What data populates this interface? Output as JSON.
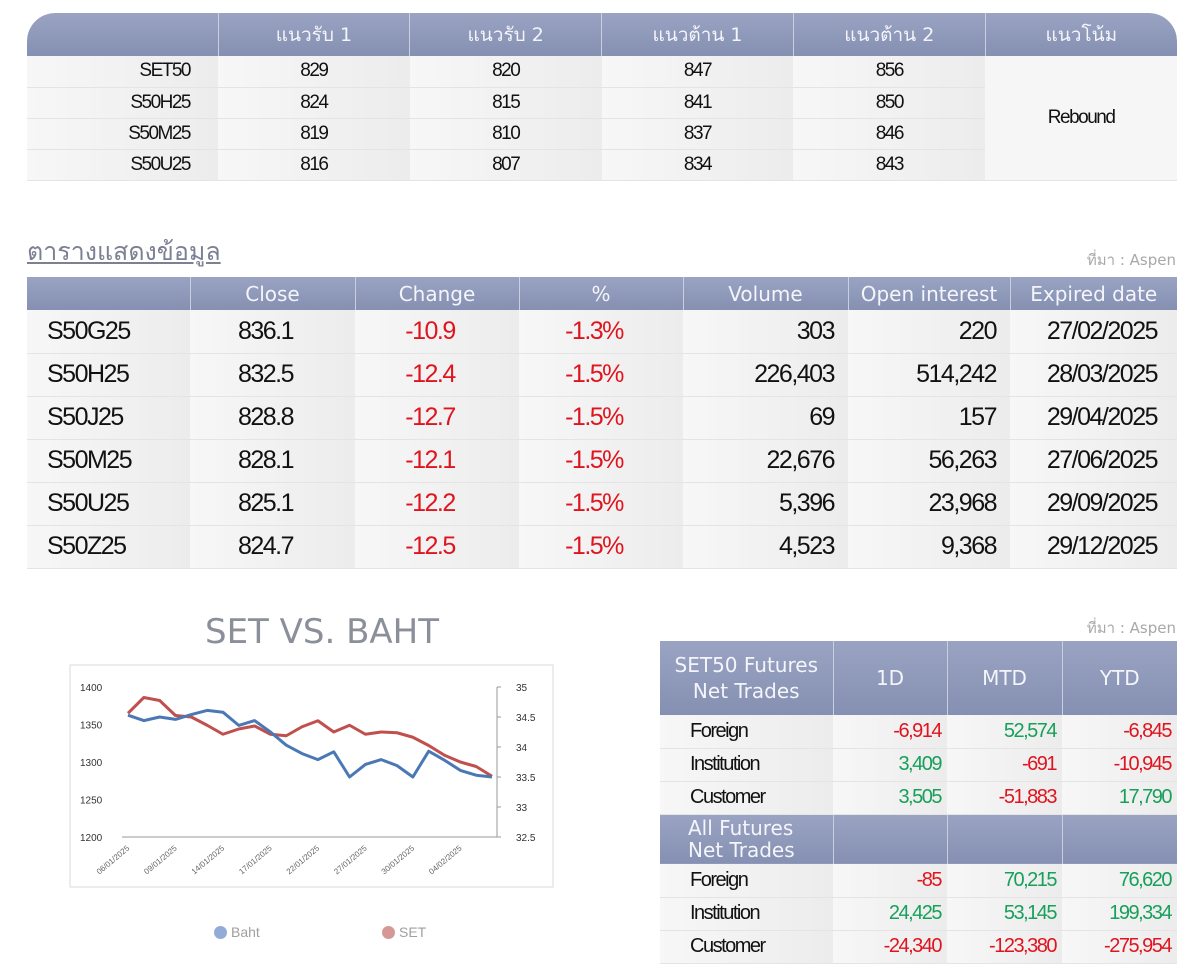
{
  "levels": {
    "headers": [
      "",
      "แนวรับ 1",
      "แนวรับ 2",
      "แนวต้าน 1",
      "แนวต้าน 2",
      "แนวโน้ม"
    ],
    "rows": [
      {
        "symbol": "SET50",
        "s1": "829",
        "s2": "820",
        "r1": "847",
        "r2": "856"
      },
      {
        "symbol": "S50H25",
        "s1": "824",
        "s2": "815",
        "r1": "841",
        "r2": "850"
      },
      {
        "symbol": "S50M25",
        "s1": "819",
        "s2": "810",
        "r1": "837",
        "r2": "846"
      },
      {
        "symbol": "S50U25",
        "s1": "816",
        "s2": "807",
        "r1": "834",
        "r2": "843"
      }
    ],
    "trend": "Rebound"
  },
  "section_title": "ตารางแสดงข้อมูล",
  "source_label": "ที่มา : Aspen",
  "futures": {
    "headers": [
      "",
      "Close",
      "Change",
      "%",
      "Volume",
      "Open interest",
      "Expired date"
    ],
    "rows": [
      {
        "symbol": "S50G25",
        "close": "836.1",
        "change": "-10.9",
        "pct": "-1.3%",
        "volume": "303",
        "oi": "220",
        "expiry": "27/02/2025"
      },
      {
        "symbol": "S50H25",
        "close": "832.5",
        "change": "-12.4",
        "pct": "-1.5%",
        "volume": "226,403",
        "oi": "514,242",
        "expiry": "28/03/2025"
      },
      {
        "symbol": "S50J25",
        "close": "828.8",
        "change": "-12.7",
        "pct": "-1.5%",
        "volume": "69",
        "oi": "157",
        "expiry": "29/04/2025"
      },
      {
        "symbol": "S50M25",
        "close": "828.1",
        "change": "-12.1",
        "pct": "-1.5%",
        "volume": "22,676",
        "oi": "56,263",
        "expiry": "27/06/2025"
      },
      {
        "symbol": "S50U25",
        "close": "825.1",
        "change": "-12.2",
        "pct": "-1.5%",
        "volume": "5,396",
        "oi": "23,968",
        "expiry": "29/09/2025"
      },
      {
        "symbol": "S50Z25",
        "close": "824.7",
        "change": "-12.5",
        "pct": "-1.5%",
        "volume": "4,523",
        "oi": "9,368",
        "expiry": "29/12/2025"
      }
    ]
  },
  "net_trades": {
    "header1": "SET50 Futures Net Trades",
    "columns": [
      "1D",
      "MTD",
      "YTD"
    ],
    "set50_rows": [
      {
        "label": "Foreign",
        "values": [
          "-6,914",
          "52,574",
          "-6,845"
        ]
      },
      {
        "label": "Institution",
        "values": [
          "3,409",
          "-691",
          "-10,945"
        ]
      },
      {
        "label": "Customer",
        "values": [
          "3,505",
          "-51,883",
          "17,790"
        ]
      }
    ],
    "header2": "All Futures Net Trades",
    "all_rows": [
      {
        "label": "Foreign",
        "values": [
          "-85",
          "70,215",
          "76,620"
        ]
      },
      {
        "label": "Institution",
        "values": [
          "24,425",
          "53,145",
          "199,334"
        ]
      },
      {
        "label": "Customer",
        "values": [
          "-24,340",
          "-123,380",
          "-275,954"
        ]
      }
    ]
  },
  "colors": {
    "header": "#8a94b5",
    "negative": "#e0141e",
    "positive": "#17a05a",
    "baht": "#4a78b5",
    "set": "#c0504d"
  },
  "chart_data": {
    "type": "line",
    "title": "SET VS. BAHT",
    "x_tick_labels": [
      "06/01/2025",
      "09/01/2025",
      "14/01/2025",
      "17/01/2025",
      "22/01/2025",
      "27/01/2025",
      "30/01/2025",
      "04/02/2025"
    ],
    "left_axis": {
      "ylim": [
        1200,
        1400
      ],
      "ticks": [
        "1400",
        "1350",
        "1300",
        "1250",
        "1200"
      ]
    },
    "right_axis": {
      "ylim": [
        32.5,
        35
      ],
      "ticks": [
        "35",
        "34.5",
        "34",
        "33.5",
        "33",
        "32.5"
      ]
    },
    "grid": false,
    "legend_position": "bottom",
    "series": [
      {
        "name": "Baht",
        "axis": "right",
        "color": "#4a78b5",
        "values": [
          34.53,
          34.44,
          34.5,
          34.46,
          34.54,
          34.61,
          34.58,
          34.36,
          34.44,
          34.25,
          34.03,
          33.89,
          33.79,
          33.92,
          33.5,
          33.71,
          33.79,
          33.69,
          33.5,
          33.93,
          33.78,
          33.61,
          33.53,
          33.5
        ]
      },
      {
        "name": "SET",
        "axis": "left",
        "color": "#c0504d",
        "values": [
          1365,
          1386,
          1382,
          1362,
          1360,
          1349,
          1337,
          1344,
          1348,
          1337,
          1335,
          1347,
          1355,
          1340,
          1349,
          1337,
          1340,
          1339,
          1333,
          1322,
          1309,
          1300,
          1294,
          1281
        ]
      }
    ]
  }
}
